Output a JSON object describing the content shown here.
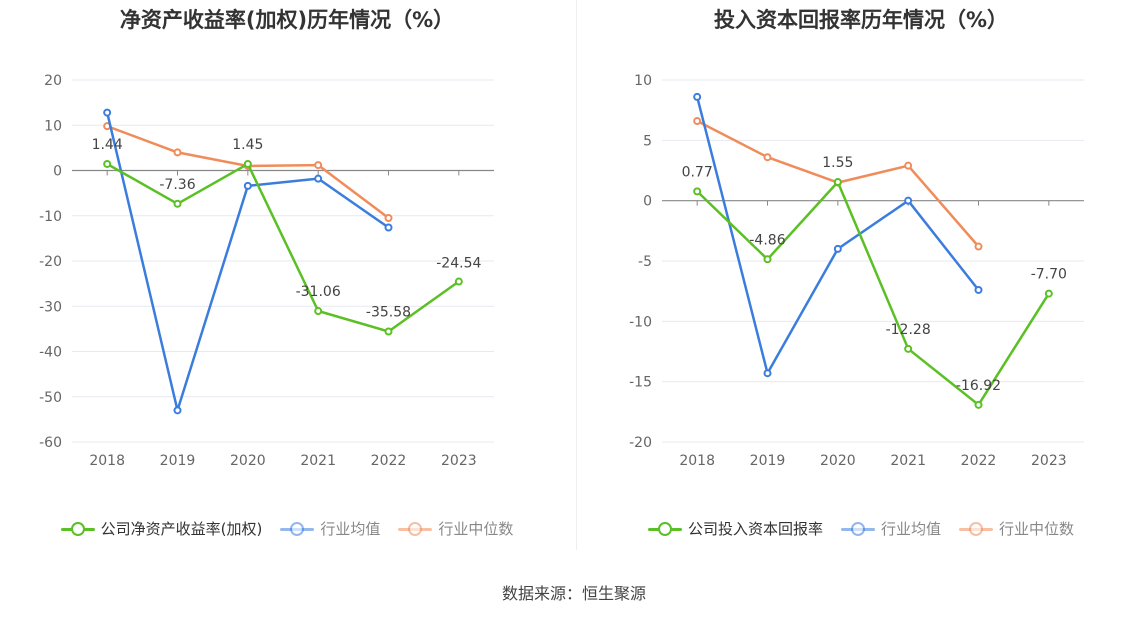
{
  "chart_data": [
    {
      "type": "line",
      "title": "净资产收益率(加权)历年情况（%）",
      "categories": [
        "2018",
        "2019",
        "2020",
        "2021",
        "2022",
        "2023"
      ],
      "ylim": [
        -60,
        20
      ],
      "yticks": [
        20,
        10,
        0,
        -10,
        -20,
        -30,
        -40,
        -50,
        -60
      ],
      "grid": true,
      "legend_position": "bottom",
      "series": [
        {
          "name": "公司净资产收益率(加权)",
          "color": "#5ac024",
          "values": [
            1.44,
            -7.36,
            1.45,
            -31.06,
            -35.58,
            -24.54
          ],
          "labels": [
            "1.44",
            "-7.36",
            "1.45",
            "-31.06",
            "-35.58",
            "-24.54"
          ]
        },
        {
          "name": "行业均值",
          "color": "#3b7ddd",
          "values": [
            12.8,
            -53.0,
            -3.4,
            -1.8,
            -12.6,
            null
          ]
        },
        {
          "name": "行业中位数",
          "color": "#f08c5a",
          "values": [
            9.8,
            4.0,
            1.0,
            1.2,
            -10.5,
            null
          ]
        }
      ]
    },
    {
      "type": "line",
      "title": "投入资本回报率历年情况（%）",
      "categories": [
        "2018",
        "2019",
        "2020",
        "2021",
        "2022",
        "2023"
      ],
      "ylim": [
        -20,
        10
      ],
      "yticks": [
        10,
        5,
        0,
        -5,
        -10,
        -15,
        -20
      ],
      "grid": true,
      "legend_position": "bottom",
      "series": [
        {
          "name": "公司投入资本回报率",
          "color": "#5ac024",
          "values": [
            0.77,
            -4.86,
            1.55,
            -12.28,
            -16.92,
            -7.7
          ],
          "labels": [
            "0.77",
            "-4.86",
            "1.55",
            "-12.28",
            "-16.92",
            "-7.70"
          ]
        },
        {
          "name": "行业均值",
          "color": "#3b7ddd",
          "values": [
            8.6,
            -14.3,
            -4.0,
            0.0,
            -7.4,
            null
          ]
        },
        {
          "name": "行业中位数",
          "color": "#f08c5a",
          "values": [
            6.6,
            3.6,
            1.5,
            2.9,
            -3.8,
            null
          ]
        }
      ]
    }
  ],
  "source": "数据来源：恒生聚源"
}
